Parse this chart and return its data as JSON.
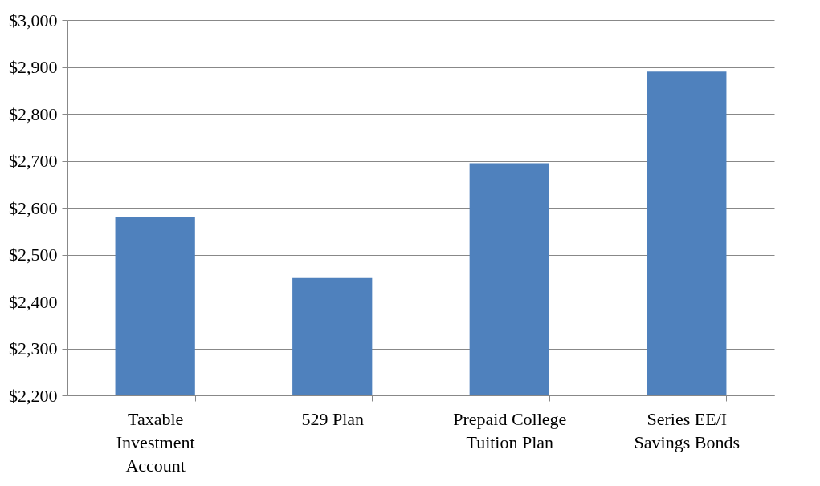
{
  "chart_data": {
    "type": "bar",
    "categories": [
      "Taxable Investment Account",
      "529 Plan",
      "Prepaid College Tuition Plan",
      "Series EE/I Savings Bonds"
    ],
    "values": [
      2580,
      2450,
      2695,
      2890
    ],
    "color": "#4f81bd",
    "ylim": [
      2200,
      3000
    ],
    "yticks": [
      {
        "value": 2200,
        "label": "$2,200"
      },
      {
        "value": 2300,
        "label": "$2,300"
      },
      {
        "value": 2400,
        "label": "$2,400"
      },
      {
        "value": 2500,
        "label": "$2,500"
      },
      {
        "value": 2600,
        "label": "$2,600"
      },
      {
        "value": 2700,
        "label": "$2,700"
      },
      {
        "value": 2800,
        "label": "$2,800"
      },
      {
        "value": 2900,
        "label": "$2,900"
      },
      {
        "value": 3000,
        "label": "$3,000"
      }
    ],
    "grid": "y"
  }
}
